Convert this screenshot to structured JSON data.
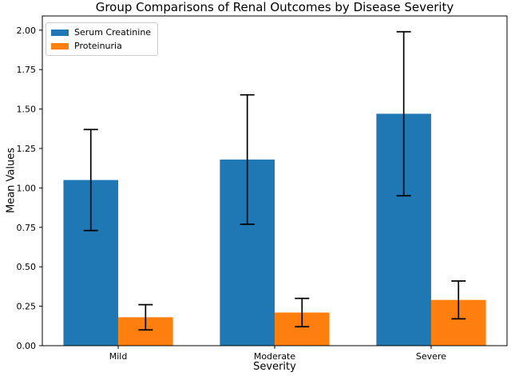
{
  "chart_data": {
    "type": "bar",
    "title": "Group Comparisons of Renal Outcomes by Disease Severity",
    "xlabel": "Severity",
    "ylabel": "Mean Values",
    "categories": [
      "Mild",
      "Moderate",
      "Severe"
    ],
    "series": [
      {
        "name": "Serum Creatinine",
        "color": "#1f77b4",
        "values": [
          1.05,
          1.18,
          1.47
        ],
        "errors": [
          0.32,
          0.41,
          0.52
        ]
      },
      {
        "name": "Proteinuria",
        "color": "#ff7f0e",
        "values": [
          0.18,
          0.21,
          0.29
        ],
        "errors": [
          0.08,
          0.09,
          0.12
        ]
      }
    ],
    "bar_width": 0.35,
    "xlim": [
      -0.485,
      2.485
    ],
    "ylim": [
      0,
      2.09
    ],
    "yticks": [
      0.0,
      0.25,
      0.5,
      0.75,
      1.0,
      1.25,
      1.5,
      1.75,
      2.0
    ],
    "ytick_labels": [
      "0.00",
      "0.25",
      "0.50",
      "0.75",
      "1.00",
      "1.25",
      "1.50",
      "1.75",
      "2.00"
    ],
    "legend_position": "upper left",
    "grid": false,
    "error_color": "#000000",
    "spine_color": "#000000",
    "background_color": "#ffffff"
  }
}
